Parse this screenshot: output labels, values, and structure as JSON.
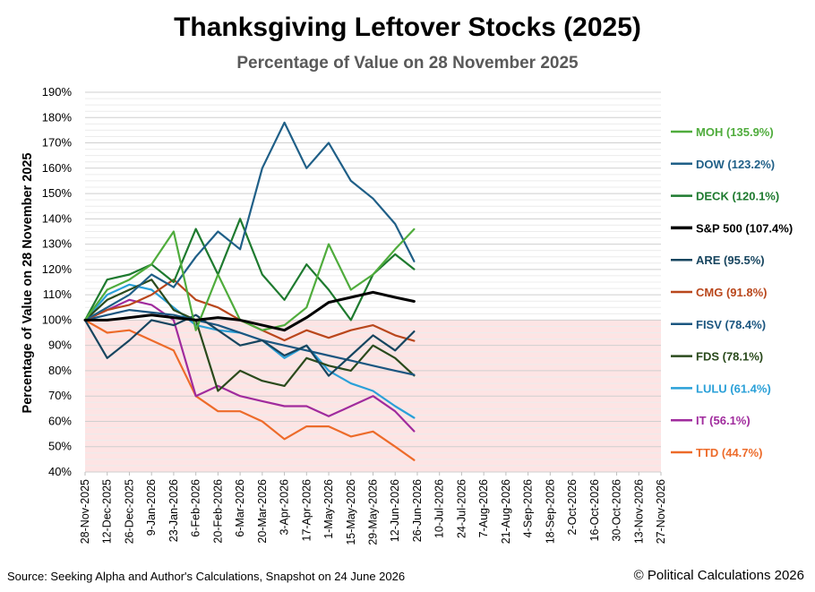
{
  "chart_data": {
    "type": "line",
    "title": "Thanksgiving Leftover Stocks (2025)",
    "subtitle": "Percentage of Value on 28 November 2025",
    "xlabel": "",
    "ylabel": "Percentage of Value on 28 November 2025",
    "ylim": [
      40,
      190
    ],
    "yticks": [
      "40%",
      "50%",
      "60%",
      "70%",
      "80%",
      "90%",
      "100%",
      "110%",
      "120%",
      "130%",
      "140%",
      "150%",
      "160%",
      "170%",
      "180%",
      "190%"
    ],
    "xticks": [
      "28-Nov-2025",
      "12-Dec-2025",
      "26-Dec-2025",
      "9-Jan-2026",
      "23-Jan-2026",
      "6-Feb-2026",
      "20-Feb-2026",
      "6-Mar-2026",
      "20-Mar-2026",
      "3-Apr-2026",
      "17-Apr-2026",
      "1-May-2026",
      "15-May-2026",
      "29-May-2026",
      "12-Jun-2026",
      "26-Jun-2026",
      "10-Jul-2026",
      "24-Jul-2026",
      "7-Aug-2026",
      "21-Aug-2026",
      "4-Sep-2026",
      "18-Sep-2026",
      "2-Oct-2026",
      "16-Oct-2026",
      "30-Oct-2026",
      "13-Nov-2026",
      "27-Nov-2026"
    ],
    "grid": true,
    "shaded_below": 100,
    "legend_placement": "right",
    "series": [
      {
        "name": "MOH (135.9%)",
        "color": "#4fac3c",
        "x": [
          "2025-11-28",
          "2025-12-12",
          "2025-12-26",
          "2026-01-09",
          "2026-01-23",
          "2026-02-06",
          "2026-02-20",
          "2026-03-06",
          "2026-03-20",
          "2026-04-03",
          "2026-04-17",
          "2026-05-01",
          "2026-05-15",
          "2026-05-29",
          "2026-06-12",
          "2026-06-24"
        ],
        "values": [
          100,
          112,
          116,
          122,
          135,
          96,
          118,
          100,
          96,
          98,
          105,
          130,
          112,
          118,
          128,
          135.9
        ]
      },
      {
        "name": "DOW (123.2%)",
        "color": "#1f5f87",
        "x": [
          "2025-11-28",
          "2025-12-12",
          "2025-12-26",
          "2026-01-09",
          "2026-01-23",
          "2026-02-06",
          "2026-02-20",
          "2026-03-06",
          "2026-03-20",
          "2026-04-03",
          "2026-04-17",
          "2026-05-01",
          "2026-05-15",
          "2026-05-29",
          "2026-06-12",
          "2026-06-24"
        ],
        "values": [
          100,
          105,
          110,
          118,
          113,
          125,
          135,
          128,
          160,
          178,
          160,
          170,
          155,
          148,
          138,
          123.2
        ]
      },
      {
        "name": "DECK (120.1%)",
        "color": "#1e7a2f",
        "x": [
          "2025-11-28",
          "2025-12-12",
          "2025-12-26",
          "2026-01-09",
          "2026-01-23",
          "2026-02-06",
          "2026-02-20",
          "2026-03-06",
          "2026-03-20",
          "2026-04-03",
          "2026-04-17",
          "2026-05-01",
          "2026-05-15",
          "2026-05-29",
          "2026-06-12",
          "2026-06-24"
        ],
        "values": [
          100,
          116,
          118,
          122,
          115,
          136,
          118,
          140,
          118,
          108,
          122,
          112,
          100,
          118,
          126,
          120.1
        ]
      },
      {
        "name": "S&P 500 (107.4%)",
        "color": "#000000",
        "x": [
          "2025-11-28",
          "2025-12-12",
          "2025-12-26",
          "2026-01-09",
          "2026-01-23",
          "2026-02-06",
          "2026-02-20",
          "2026-03-06",
          "2026-03-20",
          "2026-04-03",
          "2026-04-17",
          "2026-05-01",
          "2026-05-15",
          "2026-05-29",
          "2026-06-12",
          "2026-06-24"
        ],
        "values": [
          100,
          100,
          101,
          102,
          101,
          100,
          101,
          100,
          98,
          96,
          101,
          107,
          109,
          111,
          109,
          107.4
        ]
      },
      {
        "name": "ARE (95.5%)",
        "color": "#17455f",
        "x": [
          "2025-11-28",
          "2025-12-12",
          "2025-12-26",
          "2026-01-09",
          "2026-01-23",
          "2026-02-06",
          "2026-02-20",
          "2026-03-06",
          "2026-03-20",
          "2026-04-03",
          "2026-04-17",
          "2026-05-01",
          "2026-05-15",
          "2026-05-29",
          "2026-06-12",
          "2026-06-24"
        ],
        "values": [
          100,
          85,
          92,
          100,
          98,
          102,
          96,
          90,
          92,
          86,
          90,
          78,
          86,
          94,
          88,
          95.5
        ]
      },
      {
        "name": "CMG (91.8%)",
        "color": "#b9471c",
        "x": [
          "2025-11-28",
          "2025-12-12",
          "2025-12-26",
          "2026-01-09",
          "2026-01-23",
          "2026-02-06",
          "2026-02-20",
          "2026-03-06",
          "2026-03-20",
          "2026-04-03",
          "2026-04-17",
          "2026-05-01",
          "2026-05-15",
          "2026-05-29",
          "2026-06-12",
          "2026-06-24"
        ],
        "values": [
          100,
          104,
          106,
          110,
          116,
          108,
          105,
          100,
          96,
          92,
          96,
          93,
          96,
          98,
          94,
          91.8
        ]
      },
      {
        "name": "FISV (78.4%)",
        "color": "#1b5680",
        "x": [
          "2025-11-28",
          "2025-12-12",
          "2025-12-26",
          "2026-01-09",
          "2026-01-23",
          "2026-02-06",
          "2026-02-20",
          "2026-03-06",
          "2026-03-20",
          "2026-04-03",
          "2026-04-17",
          "2026-05-01",
          "2026-05-15",
          "2026-05-29",
          "2026-06-12",
          "2026-06-24"
        ],
        "values": [
          100,
          102,
          104,
          103,
          102,
          100,
          98,
          95,
          92,
          90,
          88,
          86,
          84,
          82,
          80,
          78.4
        ]
      },
      {
        "name": "FDS (78.1%)",
        "color": "#2a4a1c",
        "x": [
          "2025-11-28",
          "2025-12-12",
          "2025-12-26",
          "2026-01-09",
          "2026-01-23",
          "2026-02-06",
          "2026-02-20",
          "2026-03-06",
          "2026-03-20",
          "2026-04-03",
          "2026-04-17",
          "2026-05-01",
          "2026-05-15",
          "2026-05-29",
          "2026-06-12",
          "2026-06-24"
        ],
        "values": [
          100,
          108,
          112,
          116,
          104,
          100,
          72,
          80,
          76,
          74,
          85,
          82,
          80,
          90,
          85,
          78.1
        ]
      },
      {
        "name": "LULU (61.4%)",
        "color": "#2aa0d8",
        "x": [
          "2025-11-28",
          "2025-12-12",
          "2025-12-26",
          "2026-01-09",
          "2026-01-23",
          "2026-02-06",
          "2026-02-20",
          "2026-03-06",
          "2026-03-20",
          "2026-04-03",
          "2026-04-17",
          "2026-05-01",
          "2026-05-15",
          "2026-05-29",
          "2026-06-12",
          "2026-06-24"
        ],
        "values": [
          100,
          110,
          114,
          112,
          105,
          98,
          96,
          95,
          92,
          85,
          90,
          80,
          75,
          72,
          66,
          61.4
        ]
      },
      {
        "name": "IT (56.1%)",
        "color": "#a02b9d",
        "x": [
          "2025-11-28",
          "2025-12-12",
          "2025-12-26",
          "2026-01-09",
          "2026-01-23",
          "2026-02-06",
          "2026-02-20",
          "2026-03-06",
          "2026-03-20",
          "2026-04-03",
          "2026-04-17",
          "2026-05-01",
          "2026-05-15",
          "2026-05-29",
          "2026-06-12",
          "2026-06-24"
        ],
        "values": [
          100,
          104,
          108,
          106,
          100,
          70,
          74,
          70,
          68,
          66,
          66,
          62,
          66,
          70,
          64,
          56.1
        ]
      },
      {
        "name": "TTD (44.7%)",
        "color": "#ed6b2a",
        "x": [
          "2025-11-28",
          "2025-12-12",
          "2025-12-26",
          "2026-01-09",
          "2026-01-23",
          "2026-02-06",
          "2026-02-20",
          "2026-03-06",
          "2026-03-20",
          "2026-04-03",
          "2026-04-17",
          "2026-05-01",
          "2026-05-15",
          "2026-05-29",
          "2026-06-12",
          "2026-06-24"
        ],
        "values": [
          100,
          95,
          96,
          92,
          88,
          70,
          64,
          64,
          60,
          53,
          58,
          58,
          54,
          56,
          50,
          44.7
        ]
      }
    ]
  },
  "footer": {
    "source": "Source: Seeking Alpha and Author's Calculations, Snapshot on 24 June 2026",
    "copyright": "© Political Calculations 2026"
  }
}
